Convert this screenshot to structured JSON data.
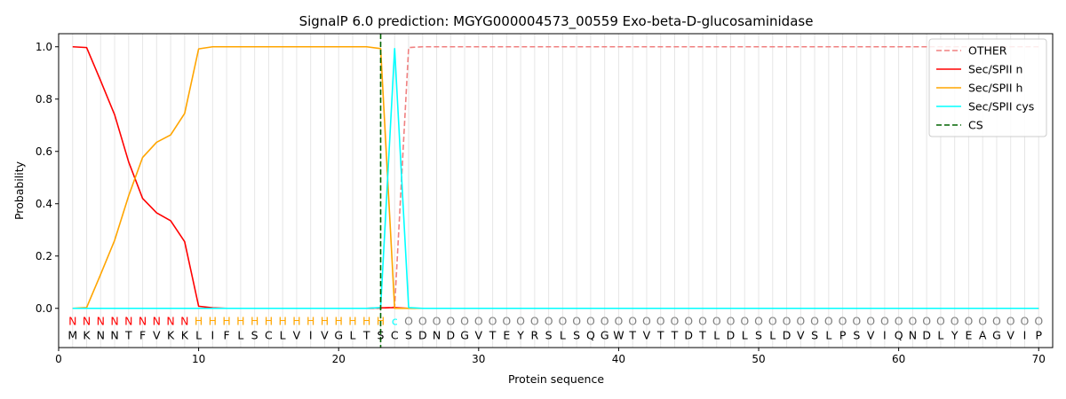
{
  "chart_data": {
    "type": "line",
    "title": "SignalP 6.0 prediction: MGYG000004573_00559 Exo-beta-D-glucosaminidase",
    "xlabel": "Protein sequence",
    "ylabel": "Probability",
    "xlim": [
      0,
      71
    ],
    "ylim": [
      -0.15,
      1.05
    ],
    "x_ticks": [
      0,
      10,
      20,
      30,
      40,
      50,
      60,
      70
    ],
    "y_ticks": [
      0.0,
      0.2,
      0.4,
      0.6,
      0.8,
      1.0
    ],
    "x_tick_labels": [
      "0",
      "10",
      "20",
      "30",
      "40",
      "50",
      "60",
      "70"
    ],
    "y_tick_labels": [
      "0.0",
      "0.2",
      "0.4",
      "0.6",
      "0.8",
      "1.0"
    ],
    "grid": "vertical lines at each residue",
    "legend_position": "top-right",
    "sequence": [
      "M",
      "K",
      "N",
      "N",
      "T",
      "F",
      "V",
      "K",
      "K",
      "L",
      "I",
      "F",
      "L",
      "S",
      "C",
      "L",
      "V",
      "I",
      "V",
      "G",
      "L",
      "T",
      "S",
      "C",
      "S",
      "D",
      "N",
      "D",
      "G",
      "V",
      "T",
      "E",
      "Y",
      "R",
      "S",
      "L",
      "S",
      "Q",
      "G",
      "W",
      "T",
      "V",
      "T",
      "T",
      "D",
      "T",
      "L",
      "D",
      "L",
      "S",
      "L",
      "D",
      "V",
      "S",
      "L",
      "P",
      "S",
      "V",
      "I",
      "Q",
      "N",
      "D",
      "L",
      "Y",
      "E",
      "A",
      "G",
      "V",
      "I",
      "P"
    ],
    "labels": [
      "N",
      "N",
      "N",
      "N",
      "N",
      "N",
      "N",
      "N",
      "N",
      "H",
      "H",
      "H",
      "H",
      "H",
      "H",
      "H",
      "H",
      "H",
      "H",
      "H",
      "H",
      "H",
      "H",
      "c",
      "O",
      "O",
      "O",
      "O",
      "O",
      "O",
      "O",
      "O",
      "O",
      "O",
      "O",
      "O",
      "O",
      "O",
      "O",
      "O",
      "O",
      "O",
      "O",
      "O",
      "O",
      "O",
      "O",
      "O",
      "O",
      "O",
      "O",
      "O",
      "O",
      "O",
      "O",
      "O",
      "O",
      "O",
      "O",
      "O",
      "O",
      "O",
      "O",
      "O",
      "O",
      "O",
      "O",
      "O",
      "O",
      "O"
    ],
    "label_colors": {
      "N": "#ff0000",
      "H": "#ffa500",
      "c": "#00ffff",
      "O": "#808080"
    },
    "cs_position": 23,
    "series": [
      {
        "name": "OTHER",
        "color": "#f08080",
        "dash": "dashed",
        "x": [
          1,
          2,
          3,
          4,
          5,
          6,
          7,
          8,
          9,
          10,
          11,
          12,
          13,
          14,
          15,
          16,
          17,
          18,
          19,
          20,
          21,
          22,
          23,
          24,
          25,
          26,
          27,
          28,
          29,
          30,
          31,
          32,
          33,
          34,
          35,
          36,
          37,
          38,
          39,
          40,
          41,
          42,
          43,
          44,
          45,
          46,
          47,
          48,
          49,
          50,
          51,
          52,
          53,
          54,
          55,
          56,
          57,
          58,
          59,
          60,
          61,
          62,
          63,
          64,
          65,
          66,
          67,
          68,
          69,
          70
        ],
        "values": [
          0,
          0,
          0,
          0,
          0,
          0,
          0,
          0,
          0,
          0,
          0,
          0,
          0,
          0,
          0,
          0,
          0,
          0,
          0,
          0,
          0,
          0,
          0,
          0.005,
          0.997,
          1,
          1,
          1,
          1,
          1,
          1,
          1,
          1,
          1,
          1,
          1,
          1,
          1,
          1,
          1,
          1,
          1,
          1,
          1,
          1,
          1,
          1,
          1,
          1,
          1,
          1,
          1,
          1,
          1,
          1,
          1,
          1,
          1,
          1,
          1,
          1,
          1,
          1,
          1,
          1,
          1,
          1,
          1,
          1,
          1
        ]
      },
      {
        "name": "Sec/SPII n",
        "color": "#ff0000",
        "dash": "solid",
        "x": [
          1,
          2,
          3,
          4,
          5,
          6,
          7,
          8,
          9,
          10,
          11,
          12,
          13,
          14,
          15,
          16,
          17,
          18,
          19,
          20,
          21,
          22,
          23,
          24,
          25,
          26,
          27,
          28,
          29,
          30,
          31,
          32,
          33,
          34,
          35,
          36,
          37,
          38,
          39,
          40,
          41,
          42,
          43,
          44,
          45,
          46,
          47,
          48,
          49,
          50,
          51,
          52,
          53,
          54,
          55,
          56,
          57,
          58,
          59,
          60,
          61,
          62,
          63,
          64,
          65,
          66,
          67,
          68,
          69,
          70
        ],
        "values": [
          1.0,
          0.997,
          0.87,
          0.74,
          0.56,
          0.42,
          0.365,
          0.335,
          0.255,
          0.008,
          0.002,
          0,
          0,
          0,
          0,
          0,
          0,
          0,
          0,
          0,
          0,
          0,
          0.002,
          0.003,
          0,
          0,
          0,
          0,
          0,
          0,
          0,
          0,
          0,
          0,
          0,
          0,
          0,
          0,
          0,
          0,
          0,
          0,
          0,
          0,
          0,
          0,
          0,
          0,
          0,
          0,
          0,
          0,
          0,
          0,
          0,
          0,
          0,
          0,
          0,
          0,
          0,
          0,
          0,
          0,
          0,
          0,
          0,
          0,
          0,
          0
        ]
      },
      {
        "name": "Sec/SPII h",
        "color": "#ffa500",
        "dash": "solid",
        "x": [
          1,
          2,
          3,
          4,
          5,
          6,
          7,
          8,
          9,
          10,
          11,
          12,
          13,
          14,
          15,
          16,
          17,
          18,
          19,
          20,
          21,
          22,
          23,
          24,
          25,
          26,
          27,
          28,
          29,
          30,
          31,
          32,
          33,
          34,
          35,
          36,
          37,
          38,
          39,
          40,
          41,
          42,
          43,
          44,
          45,
          46,
          47,
          48,
          49,
          50,
          51,
          52,
          53,
          54,
          55,
          56,
          57,
          58,
          59,
          60,
          61,
          62,
          63,
          64,
          65,
          66,
          67,
          68,
          69,
          70
        ],
        "values": [
          0,
          0.003,
          0.13,
          0.26,
          0.43,
          0.577,
          0.635,
          0.663,
          0.745,
          0.992,
          1.0,
          1.0,
          1.0,
          1.0,
          1.0,
          1.0,
          1.0,
          1.0,
          1.0,
          1.0,
          1.0,
          1.0,
          0.993,
          0,
          0,
          0,
          0,
          0,
          0,
          0,
          0,
          0,
          0,
          0,
          0,
          0,
          0,
          0,
          0,
          0,
          0,
          0,
          0,
          0,
          0,
          0,
          0,
          0,
          0,
          0,
          0,
          0,
          0,
          0,
          0,
          0,
          0,
          0,
          0,
          0,
          0,
          0,
          0,
          0,
          0,
          0,
          0,
          0,
          0,
          0
        ]
      },
      {
        "name": "Sec/SPII cys",
        "color": "#00ffff",
        "dash": "solid",
        "x": [
          1,
          2,
          3,
          4,
          5,
          6,
          7,
          8,
          9,
          10,
          11,
          12,
          13,
          14,
          15,
          16,
          17,
          18,
          19,
          20,
          21,
          22,
          23,
          24,
          25,
          26,
          27,
          28,
          29,
          30,
          31,
          32,
          33,
          34,
          35,
          36,
          37,
          38,
          39,
          40,
          41,
          42,
          43,
          44,
          45,
          46,
          47,
          48,
          49,
          50,
          51,
          52,
          53,
          54,
          55,
          56,
          57,
          58,
          59,
          60,
          61,
          62,
          63,
          64,
          65,
          66,
          67,
          68,
          69,
          70
        ],
        "values": [
          0,
          0,
          0,
          0,
          0,
          0,
          0,
          0,
          0,
          0,
          0,
          0,
          0,
          0,
          0,
          0,
          0,
          0,
          0,
          0,
          0,
          0,
          0.003,
          0.993,
          0.003,
          0,
          0,
          0,
          0,
          0,
          0,
          0,
          0,
          0,
          0,
          0,
          0,
          0,
          0,
          0,
          0,
          0,
          0,
          0,
          0,
          0,
          0,
          0,
          0,
          0,
          0,
          0,
          0,
          0,
          0,
          0,
          0,
          0,
          0,
          0,
          0,
          0,
          0,
          0,
          0,
          0,
          0,
          0,
          0,
          0
        ]
      }
    ],
    "legend": [
      {
        "name": "OTHER",
        "color": "#f08080",
        "dash": "dashed"
      },
      {
        "name": "Sec/SPII n",
        "color": "#ff0000",
        "dash": "solid"
      },
      {
        "name": "Sec/SPII h",
        "color": "#ffa500",
        "dash": "solid"
      },
      {
        "name": "Sec/SPII cys",
        "color": "#00ffff",
        "dash": "solid"
      },
      {
        "name": "CS",
        "color": "#006400",
        "dash": "dashed"
      }
    ]
  }
}
